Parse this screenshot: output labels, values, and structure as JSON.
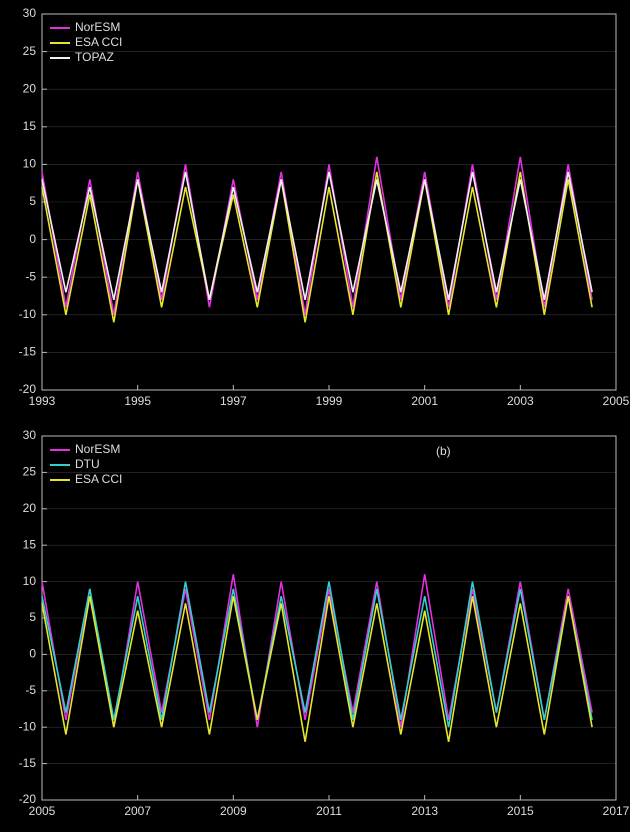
{
  "chart_data": [
    {
      "type": "line",
      "x": [
        1993,
        1993.5,
        1994,
        1994.5,
        1995,
        1995.5,
        1996,
        1996.5,
        1997,
        1997.5,
        1998,
        1998.5,
        1999,
        1999.5,
        2000,
        2000.5,
        2001,
        2001.5,
        2002,
        2002.5,
        2003,
        2003.5,
        2004,
        2004.5
      ],
      "series": [
        {
          "name": "NorESM",
          "color": "#e030e0",
          "values": [
            9,
            -9,
            8,
            -10,
            9,
            -8,
            10,
            -9,
            8,
            -8,
            9,
            -10,
            10,
            -9,
            11,
            -8,
            9,
            -9,
            10,
            -8,
            11,
            -9,
            10,
            -8
          ]
        },
        {
          "name": "ESA CCI",
          "color": "#e6e62a",
          "values": [
            7,
            -10,
            6,
            -11,
            8,
            -9,
            7,
            -8,
            6,
            -9,
            8,
            -11,
            7,
            -10,
            9,
            -9,
            8,
            -10,
            7,
            -9,
            9,
            -10,
            8,
            -9
          ]
        },
        {
          "name": "TOPAZ",
          "color": "#f0f0f0",
          "values": [
            8,
            -7,
            7,
            -8,
            8,
            -7,
            9,
            -8,
            7,
            -7,
            8,
            -8,
            9,
            -7,
            8,
            -7,
            8,
            -8,
            9,
            -7,
            8,
            -8,
            9,
            -7
          ]
        }
      ],
      "xlim": [
        1993,
        2005
      ],
      "xticks": [
        1993,
        1995,
        1997,
        1999,
        2001,
        2003,
        2005
      ],
      "ylim": [
        -20,
        30
      ],
      "yticks": [
        -20,
        -15,
        -10,
        -5,
        0,
        5,
        10,
        15,
        20,
        25,
        30
      ],
      "grid": true
    },
    {
      "type": "line",
      "label": "(b)",
      "x": [
        2005,
        2005.5,
        2006,
        2006.5,
        2007,
        2007.5,
        2008,
        2008.5,
        2009,
        2009.5,
        2010,
        2010.5,
        2011,
        2011.5,
        2012,
        2012.5,
        2013,
        2013.5,
        2014,
        2014.5,
        2015,
        2015.5,
        2016,
        2016.5
      ],
      "series": [
        {
          "name": "NorESM",
          "color": "#e030e0",
          "values": [
            10,
            -9,
            9,
            -10,
            10,
            -8,
            9,
            -9,
            11,
            -10,
            10,
            -9,
            9,
            -8,
            10,
            -10,
            11,
            -9,
            9,
            -8,
            10,
            -9,
            9,
            -8
          ]
        },
        {
          "name": "DTU",
          "color": "#30d0d0",
          "values": [
            8,
            -8,
            9,
            -9,
            8,
            -9,
            10,
            -8,
            9,
            -9,
            8,
            -8,
            10,
            -9,
            9,
            -9,
            8,
            -10,
            10,
            -8,
            9,
            -9,
            8,
            -9
          ]
        },
        {
          "name": "ESA CCI",
          "color": "#e6e62a",
          "values": [
            7,
            -11,
            8,
            -10,
            6,
            -10,
            7,
            -11,
            8,
            -9,
            7,
            -12,
            8,
            -10,
            7,
            -11,
            6,
            -12,
            8,
            -10,
            7,
            -11,
            8,
            -10
          ]
        }
      ],
      "xlim": [
        2005,
        2017
      ],
      "xticks": [
        2005,
        2007,
        2009,
        2011,
        2013,
        2015,
        2017
      ],
      "ylim": [
        -20,
        30
      ],
      "yticks": [
        -20,
        -15,
        -10,
        -5,
        0,
        5,
        10,
        15,
        20,
        25,
        30
      ],
      "grid": true
    }
  ]
}
